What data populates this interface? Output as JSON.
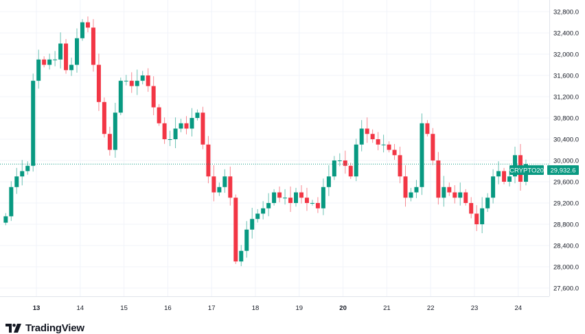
{
  "chart_data": {
    "type": "candlestick",
    "symbol": "CRYPTO20",
    "last_price": 29932.6,
    "last_price_label": "29,932.6",
    "colors": {
      "up": "#089981",
      "down": "#f23645",
      "grid": "#f0f3fa",
      "last_line": "#089981"
    },
    "x_unit": "day",
    "x_start": 12.3,
    "x_step": 0.125,
    "xlim": [
      12.3,
      24.7
    ],
    "ylim": [
      27400,
      32950
    ],
    "x_ticks": [
      {
        "value": 13,
        "label": "13",
        "bold": true
      },
      {
        "value": 14,
        "label": "14"
      },
      {
        "value": 15,
        "label": "15"
      },
      {
        "value": 16,
        "label": "16"
      },
      {
        "value": 17,
        "label": "17"
      },
      {
        "value": 18,
        "label": "18"
      },
      {
        "value": 19,
        "label": "19"
      },
      {
        "value": 20,
        "label": "20",
        "bold": true
      },
      {
        "value": 21,
        "label": "21"
      },
      {
        "value": 22,
        "label": "22"
      },
      {
        "value": 23,
        "label": "23"
      },
      {
        "value": 24,
        "label": "24"
      }
    ],
    "y_ticks": [
      {
        "value": 27600,
        "label": "27,600.0"
      },
      {
        "value": 28000,
        "label": "28,000.0"
      },
      {
        "value": 28400,
        "label": "28,400.0"
      },
      {
        "value": 28800,
        "label": "28,800.0"
      },
      {
        "value": 29200,
        "label": "29,200.0"
      },
      {
        "value": 29600,
        "label": "29,600.0"
      },
      {
        "value": 30000,
        "label": "30,000.0"
      },
      {
        "value": 30400,
        "label": "30,400.0"
      },
      {
        "value": 30800,
        "label": "30,800.0"
      },
      {
        "value": 31200,
        "label": "31,200.0"
      },
      {
        "value": 31600,
        "label": "31,600.0"
      },
      {
        "value": 32000,
        "label": "32,000.0"
      },
      {
        "value": 32400,
        "label": "32,400.0"
      },
      {
        "value": 32800,
        "label": "32,800.0"
      }
    ],
    "closes": [
      28950,
      29500,
      29700,
      29800,
      29900,
      31500,
      31900,
      31800,
      31900,
      31900,
      32200,
      31700,
      31800,
      32300,
      32600,
      32500,
      31800,
      31100,
      30500,
      30200,
      30900,
      31500,
      31500,
      31400,
      31500,
      31600,
      31400,
      31000,
      30700,
      30400,
      30400,
      30600,
      30700,
      30600,
      30800,
      30900,
      30300,
      29700,
      29400,
      29500,
      29700,
      29300,
      28100,
      28300,
      28700,
      28900,
      29000,
      29100,
      29200,
      29400,
      29300,
      29300,
      29200,
      29400,
      29300,
      29200,
      29200,
      29100,
      29500,
      29700,
      30000,
      30000,
      29900,
      29700,
      30300,
      30600,
      30500,
      30400,
      30300,
      30300,
      30200,
      30100,
      29700,
      29300,
      29400,
      29500,
      30700,
      30500,
      30000,
      29300,
      29500,
      29400,
      29300,
      29400,
      29200,
      29000,
      28800,
      29100,
      29300,
      29700,
      29800,
      29600,
      29700,
      30100,
      29600,
      29932.6
    ]
  },
  "branding": {
    "logo_text": "TradingView"
  }
}
